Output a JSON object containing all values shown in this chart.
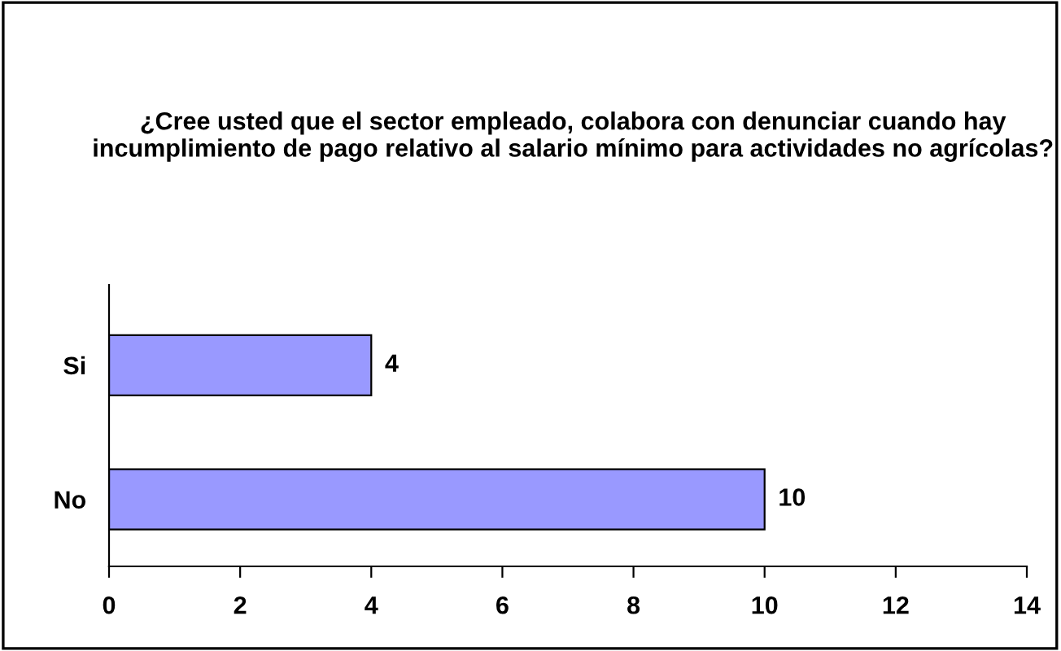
{
  "chart_data": {
    "type": "bar",
    "orientation": "horizontal",
    "title": "¿Cree usted que el sector empleado, colabora con denunciar cuando hay incumplimiento de pago relativo al salario mínimo para actividades no agrícolas?",
    "categories": [
      "Si",
      "No"
    ],
    "values": [
      4,
      10
    ],
    "color": "#9999ff",
    "xlim": [
      0,
      14
    ],
    "xticks": [
      0,
      2,
      4,
      6,
      8,
      10,
      12,
      14
    ],
    "data_labels": true,
    "grid": false
  }
}
